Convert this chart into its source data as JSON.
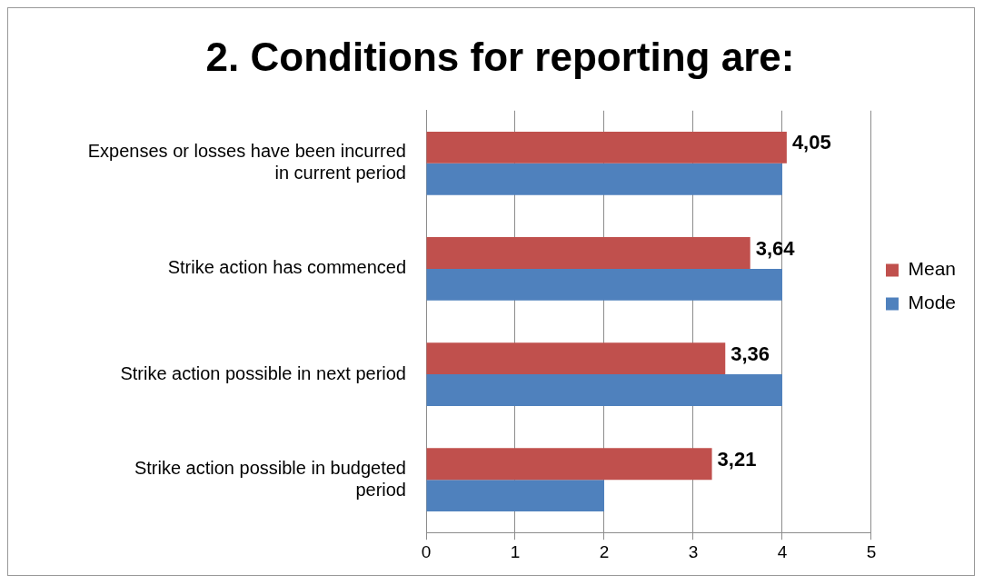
{
  "chart_data": {
    "type": "bar",
    "orientation": "horizontal",
    "title": "2. Conditions for reporting are:",
    "categories": [
      "Expenses or losses have been incurred in current period",
      "Strike action has commenced",
      "Strike action possible in next period",
      "Strike action possible in budgeted period"
    ],
    "series": [
      {
        "name": "Mean",
        "color": "#c0504d",
        "values": [
          4.05,
          3.64,
          3.36,
          3.21
        ],
        "value_labels": [
          "4,05",
          "3,64",
          "3,36",
          "3,21"
        ]
      },
      {
        "name": "Mode",
        "color": "#4f81bd",
        "values": [
          4,
          4,
          4,
          2
        ]
      }
    ],
    "xlim": [
      0,
      5
    ],
    "xticks": [
      0,
      1,
      2,
      3,
      4,
      5
    ],
    "grid": "x",
    "legend": "right"
  }
}
